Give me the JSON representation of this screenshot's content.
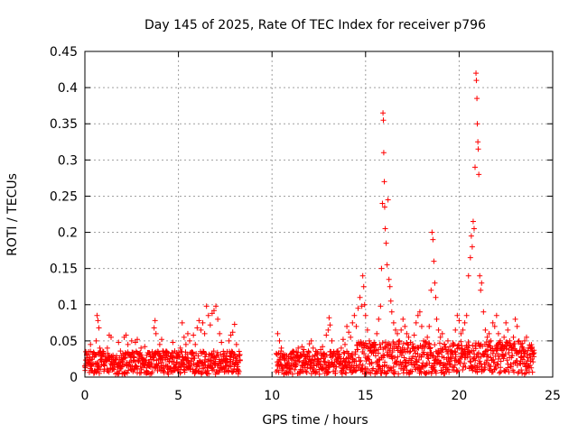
{
  "chart_data": {
    "type": "scatter",
    "title": "Day 145 of 2025, Rate Of TEC Index for receiver p796",
    "xlabel": "GPS time / hours",
    "ylabel": "ROTI / TECUs",
    "xlim": [
      0,
      25
    ],
    "ylim": [
      0,
      0.45
    ],
    "x_ticks": [
      0,
      5,
      10,
      15,
      20,
      25
    ],
    "x_tick_labels": [
      "0",
      "5",
      "10",
      "15",
      "20",
      "25"
    ],
    "y_ticks": [
      0,
      0.05,
      0.1,
      0.15,
      0.2,
      0.25,
      0.3,
      0.35,
      0.4,
      0.45
    ],
    "y_tick_labels": [
      "0",
      "0.05",
      "0.1",
      "0.15",
      "0.2",
      "0.25",
      "0.3",
      "0.35",
      "0.4",
      "0.45"
    ],
    "grid": true,
    "marker": "+",
    "color": "#ff0000",
    "data_gap_hours": [
      8.3,
      10.2
    ],
    "series": [
      {
        "name": "ROTI",
        "points": [
          [
            0.0,
            0.015
          ],
          [
            0.1,
            0.03
          ],
          [
            0.2,
            0.02
          ],
          [
            0.3,
            0.045
          ],
          [
            0.4,
            0.018
          ],
          [
            0.5,
            0.028
          ],
          [
            0.6,
            0.05
          ],
          [
            0.65,
            0.085
          ],
          [
            0.7,
            0.078
          ],
          [
            0.75,
            0.068
          ],
          [
            0.8,
            0.04
          ],
          [
            0.9,
            0.022
          ],
          [
            1.0,
            0.035
          ],
          [
            1.1,
            0.025
          ],
          [
            1.2,
            0.04
          ],
          [
            1.3,
            0.058
          ],
          [
            1.4,
            0.055
          ],
          [
            1.5,
            0.03
          ],
          [
            1.6,
            0.02
          ],
          [
            1.8,
            0.048
          ],
          [
            1.9,
            0.036
          ],
          [
            2.0,
            0.02
          ],
          [
            2.1,
            0.055
          ],
          [
            2.2,
            0.058
          ],
          [
            2.3,
            0.045
          ],
          [
            2.5,
            0.05
          ],
          [
            2.6,
            0.028
          ],
          [
            2.7,
            0.048
          ],
          [
            2.8,
            0.052
          ],
          [
            2.9,
            0.025
          ],
          [
            3.0,
            0.04
          ],
          [
            3.1,
            0.018
          ],
          [
            3.2,
            0.042
          ],
          [
            3.3,
            0.03
          ],
          [
            3.4,
            0.02
          ],
          [
            3.5,
            0.028
          ],
          [
            3.6,
            0.035
          ],
          [
            3.7,
            0.068
          ],
          [
            3.75,
            0.078
          ],
          [
            3.8,
            0.06
          ],
          [
            3.9,
            0.032
          ],
          [
            4.0,
            0.045
          ],
          [
            4.1,
            0.052
          ],
          [
            4.2,
            0.03
          ],
          [
            4.3,
            0.024
          ],
          [
            4.4,
            0.034
          ],
          [
            4.6,
            0.028
          ],
          [
            4.7,
            0.048
          ],
          [
            4.8,
            0.036
          ],
          [
            4.9,
            0.02
          ],
          [
            5.0,
            0.03
          ],
          [
            5.1,
            0.04
          ],
          [
            5.2,
            0.075
          ],
          [
            5.3,
            0.055
          ],
          [
            5.4,
            0.045
          ],
          [
            5.5,
            0.06
          ],
          [
            5.6,
            0.05
          ],
          [
            5.7,
            0.032
          ],
          [
            5.8,
            0.058
          ],
          [
            5.9,
            0.045
          ],
          [
            6.0,
            0.068
          ],
          [
            6.1,
            0.078
          ],
          [
            6.2,
            0.065
          ],
          [
            6.3,
            0.075
          ],
          [
            6.4,
            0.06
          ],
          [
            6.5,
            0.098
          ],
          [
            6.6,
            0.085
          ],
          [
            6.7,
            0.072
          ],
          [
            6.8,
            0.088
          ],
          [
            6.9,
            0.092
          ],
          [
            7.0,
            0.098
          ],
          [
            7.1,
            0.08
          ],
          [
            7.2,
            0.06
          ],
          [
            7.3,
            0.048
          ],
          [
            7.4,
            0.03
          ],
          [
            7.5,
            0.02
          ],
          [
            7.6,
            0.035
          ],
          [
            7.7,
            0.05
          ],
          [
            7.8,
            0.058
          ],
          [
            7.9,
            0.062
          ],
          [
            8.0,
            0.073
          ],
          [
            8.1,
            0.045
          ],
          [
            8.2,
            0.02
          ],
          [
            10.3,
            0.06
          ],
          [
            10.4,
            0.05
          ],
          [
            10.5,
            0.04
          ],
          [
            10.6,
            0.032
          ],
          [
            10.7,
            0.025
          ],
          [
            10.8,
            0.02
          ],
          [
            10.9,
            0.028
          ],
          [
            11.0,
            0.032
          ],
          [
            11.1,
            0.025
          ],
          [
            11.2,
            0.02
          ],
          [
            11.3,
            0.035
          ],
          [
            11.4,
            0.04
          ],
          [
            11.5,
            0.03
          ],
          [
            11.6,
            0.042
          ],
          [
            11.7,
            0.038
          ],
          [
            11.8,
            0.025
          ],
          [
            11.9,
            0.032
          ],
          [
            12.0,
            0.046
          ],
          [
            12.1,
            0.05
          ],
          [
            12.2,
            0.04
          ],
          [
            12.3,
            0.03
          ],
          [
            12.4,
            0.035
          ],
          [
            12.5,
            0.022
          ],
          [
            12.6,
            0.038
          ],
          [
            12.7,
            0.042
          ],
          [
            12.8,
            0.032
          ],
          [
            12.9,
            0.058
          ],
          [
            13.0,
            0.065
          ],
          [
            13.05,
            0.082
          ],
          [
            13.1,
            0.072
          ],
          [
            13.2,
            0.05
          ],
          [
            13.3,
            0.035
          ],
          [
            13.4,
            0.03
          ],
          [
            13.5,
            0.022
          ],
          [
            13.6,
            0.028
          ],
          [
            13.7,
            0.04
          ],
          [
            13.8,
            0.052
          ],
          [
            13.9,
            0.045
          ],
          [
            14.0,
            0.07
          ],
          [
            14.1,
            0.062
          ],
          [
            14.2,
            0.055
          ],
          [
            14.3,
            0.075
          ],
          [
            14.4,
            0.085
          ],
          [
            14.5,
            0.07
          ],
          [
            14.6,
            0.095
          ],
          [
            14.7,
            0.11
          ],
          [
            14.8,
            0.098
          ],
          [
            14.85,
            0.14
          ],
          [
            14.9,
            0.125
          ],
          [
            14.95,
            0.1
          ],
          [
            15.0,
            0.085
          ],
          [
            15.1,
            0.065
          ],
          [
            15.2,
            0.05
          ],
          [
            15.3,
            0.04
          ],
          [
            15.4,
            0.035
          ],
          [
            15.5,
            0.045
          ],
          [
            15.6,
            0.06
          ],
          [
            15.7,
            0.08
          ],
          [
            15.8,
            0.098
          ],
          [
            15.85,
            0.15
          ],
          [
            15.9,
            0.24
          ],
          [
            15.93,
            0.365
          ],
          [
            15.95,
            0.355
          ],
          [
            15.97,
            0.31
          ],
          [
            16.0,
            0.27
          ],
          [
            16.02,
            0.235
          ],
          [
            16.05,
            0.205
          ],
          [
            16.1,
            0.185
          ],
          [
            16.15,
            0.155
          ],
          [
            16.2,
            0.245
          ],
          [
            16.25,
            0.135
          ],
          [
            16.3,
            0.125
          ],
          [
            16.35,
            0.105
          ],
          [
            16.4,
            0.09
          ],
          [
            16.5,
            0.075
          ],
          [
            16.6,
            0.065
          ],
          [
            16.7,
            0.06
          ],
          [
            16.8,
            0.05
          ],
          [
            16.9,
            0.065
          ],
          [
            17.0,
            0.08
          ],
          [
            17.1,
            0.07
          ],
          [
            17.2,
            0.06
          ],
          [
            17.3,
            0.055
          ],
          [
            17.4,
            0.048
          ],
          [
            17.5,
            0.04
          ],
          [
            17.6,
            0.058
          ],
          [
            17.7,
            0.075
          ],
          [
            17.8,
            0.085
          ],
          [
            17.9,
            0.09
          ],
          [
            18.0,
            0.07
          ],
          [
            18.1,
            0.05
          ],
          [
            18.2,
            0.045
          ],
          [
            18.3,
            0.055
          ],
          [
            18.4,
            0.07
          ],
          [
            18.5,
            0.12
          ],
          [
            18.55,
            0.2
          ],
          [
            18.6,
            0.19
          ],
          [
            18.65,
            0.16
          ],
          [
            18.7,
            0.13
          ],
          [
            18.75,
            0.11
          ],
          [
            18.8,
            0.08
          ],
          [
            18.9,
            0.065
          ],
          [
            19.0,
            0.055
          ],
          [
            19.1,
            0.06
          ],
          [
            19.2,
            0.045
          ],
          [
            19.3,
            0.038
          ],
          [
            19.4,
            0.05
          ],
          [
            19.5,
            0.042
          ],
          [
            19.6,
            0.035
          ],
          [
            19.7,
            0.045
          ],
          [
            19.8,
            0.065
          ],
          [
            19.9,
            0.085
          ],
          [
            20.0,
            0.078
          ],
          [
            20.1,
            0.06
          ],
          [
            20.2,
            0.065
          ],
          [
            20.3,
            0.075
          ],
          [
            20.4,
            0.085
          ],
          [
            20.5,
            0.14
          ],
          [
            20.6,
            0.165
          ],
          [
            20.65,
            0.195
          ],
          [
            20.7,
            0.18
          ],
          [
            20.75,
            0.215
          ],
          [
            20.8,
            0.205
          ],
          [
            20.85,
            0.29
          ],
          [
            20.9,
            0.42
          ],
          [
            20.92,
            0.41
          ],
          [
            20.95,
            0.385
          ],
          [
            20.97,
            0.35
          ],
          [
            21.0,
            0.325
          ],
          [
            21.02,
            0.315
          ],
          [
            21.05,
            0.28
          ],
          [
            21.1,
            0.14
          ],
          [
            21.15,
            0.12
          ],
          [
            21.2,
            0.13
          ],
          [
            21.3,
            0.09
          ],
          [
            21.4,
            0.065
          ],
          [
            21.5,
            0.055
          ],
          [
            21.6,
            0.06
          ],
          [
            21.7,
            0.05
          ],
          [
            21.8,
            0.075
          ],
          [
            21.9,
            0.07
          ],
          [
            22.0,
            0.085
          ],
          [
            22.1,
            0.06
          ],
          [
            22.2,
            0.05
          ],
          [
            22.3,
            0.045
          ],
          [
            22.4,
            0.055
          ],
          [
            22.5,
            0.075
          ],
          [
            22.6,
            0.065
          ],
          [
            22.7,
            0.05
          ],
          [
            22.8,
            0.04
          ],
          [
            22.9,
            0.055
          ],
          [
            23.0,
            0.08
          ],
          [
            23.1,
            0.07
          ],
          [
            23.2,
            0.05
          ],
          [
            23.3,
            0.045
          ],
          [
            23.4,
            0.04
          ],
          [
            23.5,
            0.05
          ],
          [
            23.6,
            0.055
          ],
          [
            23.7,
            0.04
          ],
          [
            23.8,
            0.03
          ],
          [
            23.9,
            0.025
          ]
        ]
      }
    ]
  }
}
